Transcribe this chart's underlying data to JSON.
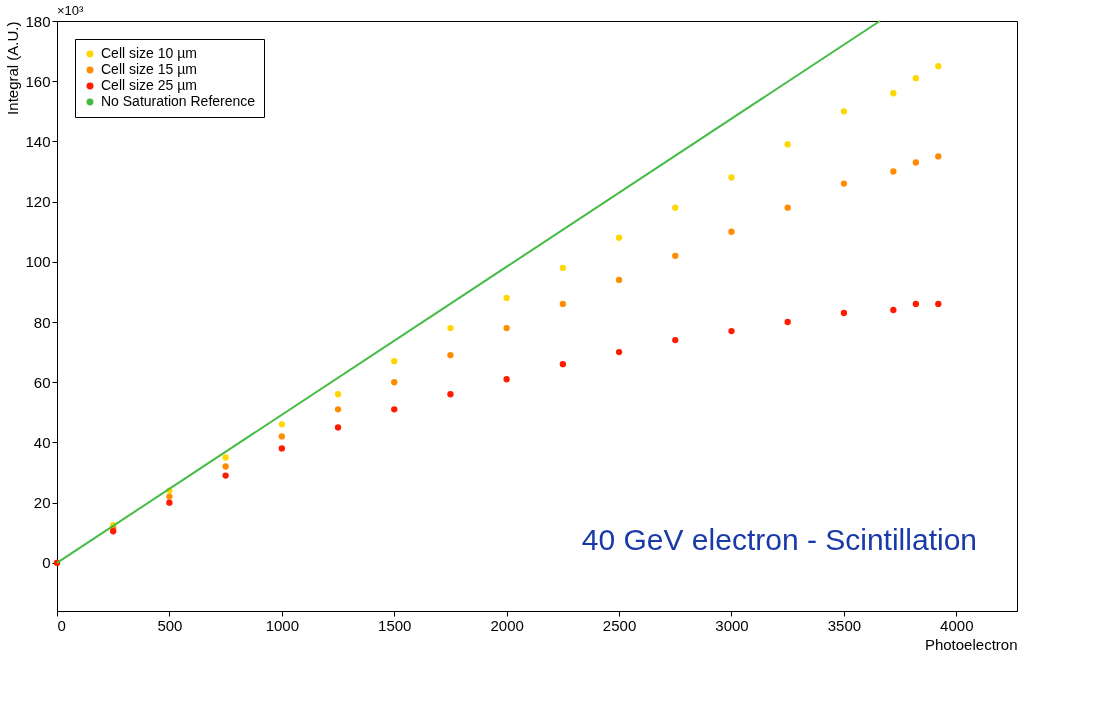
{
  "chart_data": {
    "type": "scatter",
    "xlabel": "Photoelectron",
    "ylabel": "Integral (A.U.)",
    "xlim": [
      0,
      4270
    ],
    "ylim": [
      -16,
      180
    ],
    "xticks": [
      0,
      500,
      1000,
      1500,
      2000,
      2500,
      3000,
      3500,
      4000
    ],
    "yticks": [
      0,
      20,
      40,
      60,
      80,
      100,
      120,
      140,
      160,
      180
    ],
    "x": [
      0,
      250,
      500,
      750,
      1000,
      1250,
      1500,
      1750,
      2000,
      2250,
      2500,
      2750,
      3000,
      3250,
      3500,
      3720,
      3820,
      3920
    ],
    "series": [
      {
        "name": "Cell size 10 µm",
        "color": "#ffd700",
        "values": [
          0,
          12.5,
          24,
          35,
          46,
          56,
          67,
          78,
          88,
          98,
          108,
          118,
          128,
          139,
          150,
          156,
          161,
          165
        ]
      },
      {
        "name": "Cell size 15 µm",
        "color": "#ff8c00",
        "values": [
          0,
          11.5,
          22,
          32,
          42,
          51,
          60,
          69,
          78,
          86,
          94,
          102,
          110,
          118,
          126,
          130,
          133,
          135
        ]
      },
      {
        "name": "Cell size 25 µm",
        "color": "#ff1a00",
        "values": [
          0,
          10.5,
          20,
          29,
          38,
          45,
          51,
          56,
          61,
          66,
          70,
          74,
          77,
          80,
          83,
          84,
          86,
          86
        ]
      },
      {
        "name": "No Saturation Reference",
        "color": "#44bb44",
        "type": "line",
        "marker": "none",
        "x": [
          0,
          3660
        ],
        "values": [
          0,
          180
        ]
      }
    ],
    "annotations": [
      "×10³",
      "40 GeV electron - Scintillation"
    ],
    "marker": "circle",
    "legend": "top left",
    "grid": false
  }
}
